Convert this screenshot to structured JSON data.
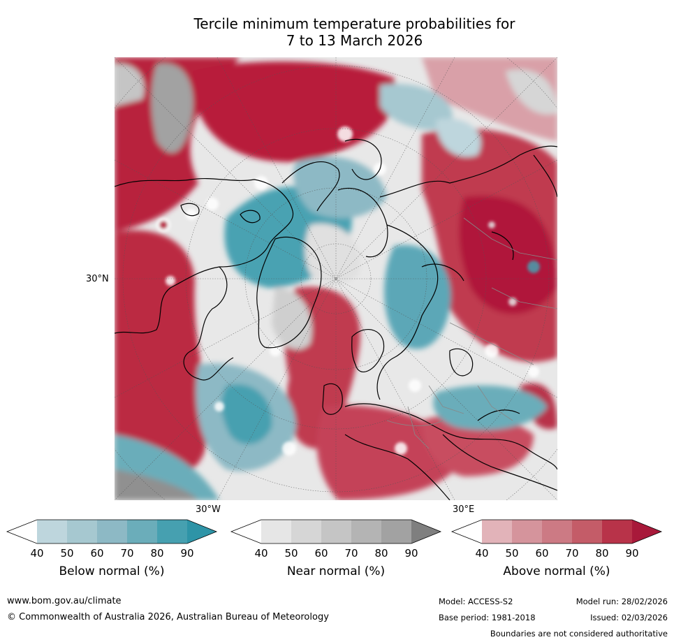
{
  "title_line1": "Tercile minimum temperature probabilities for",
  "title_line2": "7 to 13 March 2026",
  "axis_labels": {
    "lat": "30°N",
    "lon_west": "30°W",
    "lon_east": "30°E"
  },
  "colorbars": [
    {
      "label": "Below normal (%)",
      "ticks": [
        "40",
        "50",
        "60",
        "70",
        "80",
        "90"
      ],
      "colors": [
        "#ffffff",
        "#bed6dd",
        "#a6c8d0",
        "#8db9c5",
        "#6badba",
        "#46a0b0",
        "#2e94a7"
      ]
    },
    {
      "label": "Near normal (%)",
      "ticks": [
        "40",
        "50",
        "60",
        "70",
        "80",
        "90"
      ],
      "colors": [
        "#ffffff",
        "#e6e6e6",
        "#d6d6d6",
        "#c5c5c5",
        "#b4b4b4",
        "#a2a2a2",
        "#7f7f7f"
      ]
    },
    {
      "label": "Above normal (%)",
      "ticks": [
        "40",
        "50",
        "60",
        "70",
        "80",
        "90"
      ],
      "colors": [
        "#ffffff",
        "#e2b3b9",
        "#d5949c",
        "#cc7a84",
        "#c45c68",
        "#b83349",
        "#a8193a"
      ]
    }
  ],
  "footer": {
    "website": "www.bom.gov.au/climate",
    "copyright": "© Commonwealth of Australia 2026, Australian Bureau of Meteorology",
    "model": "Model: ACCESS-S2",
    "model_run": "Model run: 28/02/2026",
    "base_period": "Base period: 1981-2018",
    "issued": "Issued: 02/03/2026",
    "boundaries": "Boundaries are not considered authoritative"
  }
}
